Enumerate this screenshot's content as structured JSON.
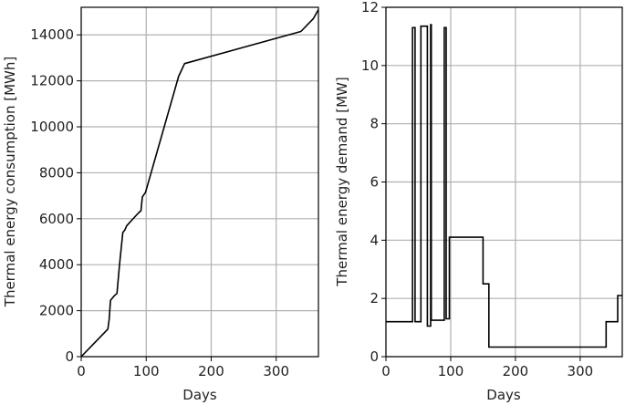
{
  "chart_data": [
    {
      "type": "line",
      "title": "",
      "xlabel": "Days",
      "ylabel": "Thermal energy consumption [MWh]",
      "xlim": [
        0,
        365
      ],
      "ylim": [
        0,
        15200
      ],
      "xticks": [
        0,
        100,
        200,
        300
      ],
      "yticks": [
        0,
        2000,
        4000,
        6000,
        8000,
        10000,
        12000,
        14000
      ],
      "grid": true,
      "legend": null,
      "series": [
        {
          "name": "Cumulative thermal energy consumption",
          "color": "#000000",
          "x": [
            0,
            41,
            43,
            45,
            51,
            55,
            59,
            64,
            67,
            70,
            88,
            92,
            94,
            99,
            150,
            159,
            338,
            357,
            365
          ],
          "y": [
            0,
            1200,
            1600,
            2450,
            2650,
            2750,
            4000,
            5400,
            5500,
            5700,
            6250,
            6350,
            6950,
            7150,
            12200,
            12750,
            14150,
            14700,
            15100
          ]
        }
      ]
    },
    {
      "type": "line",
      "step": true,
      "title": "",
      "xlabel": "Days",
      "ylabel": "Thermal energy demand [MW]",
      "xlim": [
        0,
        365
      ],
      "ylim": [
        0,
        12
      ],
      "xticks": [
        0,
        100,
        200,
        300
      ],
      "yticks": [
        0,
        2,
        4,
        6,
        8,
        10,
        12
      ],
      "grid": true,
      "legend": null,
      "series": [
        {
          "name": "Thermal energy demand",
          "color": "#000000",
          "x": [
            0,
            41,
            45,
            54,
            64,
            69,
            70,
            90,
            93,
            98,
            150,
            159,
            340,
            358,
            365
          ],
          "y": [
            1.2,
            11.3,
            1.2,
            11.35,
            1.05,
            11.4,
            1.25,
            11.3,
            1.3,
            4.1,
            2.5,
            0.33,
            1.2,
            2.1,
            2.1
          ]
        }
      ]
    }
  ],
  "left_chart": {
    "xlabel": "Days",
    "ylabel": "Thermal energy consumption [MWh]",
    "xtick_labels": [
      "0",
      "100",
      "200",
      "300"
    ],
    "ytick_labels": [
      "0",
      "2000",
      "4000",
      "6000",
      "8000",
      "10000",
      "12000",
      "14000"
    ]
  },
  "right_chart": {
    "xlabel": "Days",
    "ylabel": "Thermal energy demand [MW]",
    "xtick_labels": [
      "0",
      "100",
      "200",
      "300"
    ],
    "ytick_labels": [
      "0",
      "2",
      "4",
      "6",
      "8",
      "10",
      "12"
    ]
  },
  "colors": {
    "line": "#000000",
    "grid": "#b0b0b0",
    "axis": "#000000",
    "text": "#222222"
  }
}
